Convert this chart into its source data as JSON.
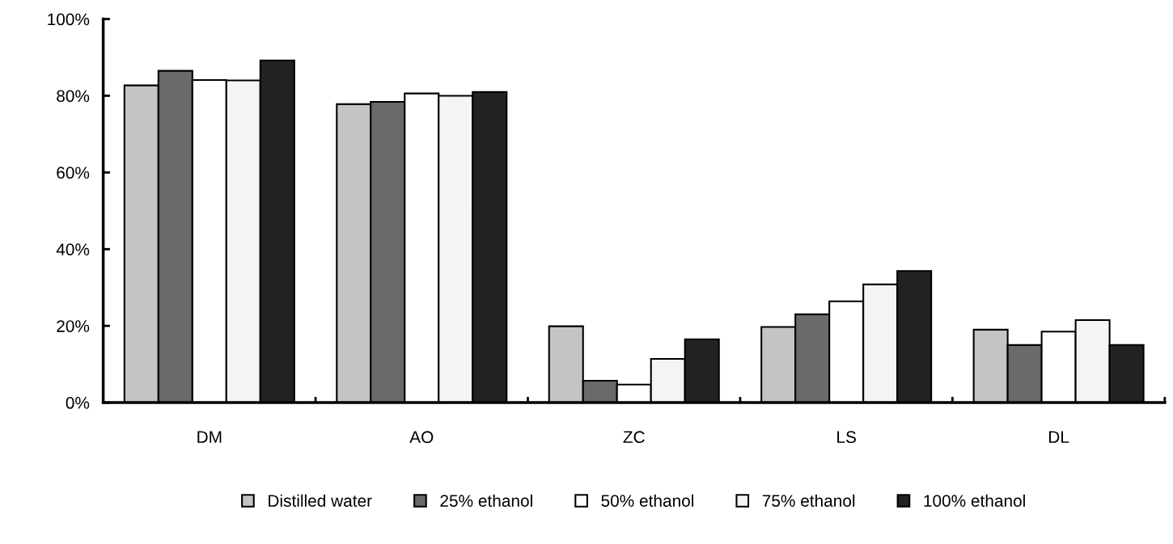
{
  "chart_data": {
    "type": "bar",
    "categories": [
      "DM",
      "AO",
      "ZC",
      "LS",
      "DL"
    ],
    "series": [
      {
        "name": "Distilled water",
        "color": "#c4c4c4",
        "values": [
          82.7,
          77.8,
          19.9,
          19.7,
          19
        ]
      },
      {
        "name": "25% ethanol",
        "color": "#6a6a6a",
        "values": [
          86.5,
          78.4,
          5.7,
          23.0,
          15
        ]
      },
      {
        "name": "50% ethanol",
        "color": "#ffffff",
        "values": [
          84.1,
          80.6,
          4.7,
          26.4,
          18.5
        ]
      },
      {
        "name": "75% ethanol",
        "color": "#f4f4f4",
        "values": [
          84.0,
          80.0,
          11.4,
          30.8,
          21.5
        ]
      },
      {
        "name": "100% ethanol",
        "color": "#222222",
        "values": [
          89.2,
          81.0,
          16.5,
          34.3,
          15
        ]
      }
    ],
    "ylim": [
      0,
      100
    ],
    "yticks": [
      {
        "value": 0,
        "label": "0%"
      },
      {
        "value": 20,
        "label": "20%"
      },
      {
        "value": 40,
        "label": "40%"
      },
      {
        "value": 60,
        "label": "60%"
      },
      {
        "value": 80,
        "label": "80%"
      },
      {
        "value": 100,
        "label": "100%"
      }
    ],
    "grid": false,
    "legend": "bottom"
  }
}
